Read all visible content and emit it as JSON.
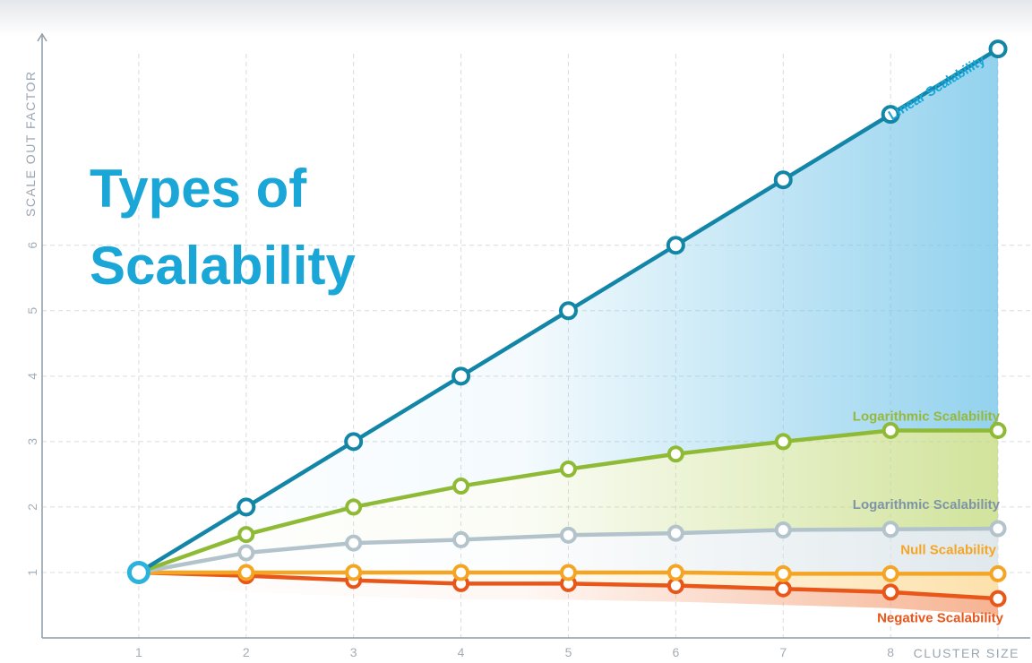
{
  "chart_data": {
    "type": "line",
    "title_lines": [
      "Types of",
      "Scalability"
    ],
    "xlabel": "CLUSTER SIZE",
    "ylabel": "SCALE OUT FACTOR",
    "x_ticks": [
      "1",
      "2",
      "3",
      "4",
      "5",
      "6",
      "7",
      "8"
    ],
    "y_ticks": [
      "1",
      "2",
      "3",
      "4",
      "5",
      "6"
    ],
    "xlim": [
      0.1,
      9.3
    ],
    "ylim": [
      0,
      9.2
    ],
    "grid": true,
    "x": [
      1,
      2,
      3,
      4,
      5,
      6,
      7,
      8,
      9
    ],
    "series": [
      {
        "name": "Linear Scalability",
        "color": "#1386a8",
        "label_color": "#1aa7d8",
        "fill": "#6fc3e8",
        "values": [
          1,
          2,
          3,
          4,
          5,
          6,
          7,
          8,
          9
        ]
      },
      {
        "name": "Logarithmic Scalability",
        "color": "#8fba36",
        "label_color": "#98b83c",
        "fill": "#c2da7a",
        "values": [
          1,
          1.58,
          2,
          2.32,
          2.58,
          2.81,
          3,
          3.17,
          3.17
        ]
      },
      {
        "name": "Logarithmic Scalability",
        "color": "#b3c3cb",
        "label_color": "#7f95a5",
        "fill": "#d6e1e6",
        "values": [
          1,
          1.3,
          1.45,
          1.5,
          1.57,
          1.6,
          1.65,
          1.66,
          1.67
        ]
      },
      {
        "name": "Null Scalability",
        "color": "#f5a524",
        "label_color": "#f5a524",
        "fill": "#fcd790",
        "values": [
          1,
          1,
          1,
          1,
          1,
          1,
          0.98,
          0.98,
          0.98
        ]
      },
      {
        "name": "Negative Scalability",
        "color": "#e8561a",
        "label_color": "#e8561a",
        "fill": "#f39a6e",
        "values": [
          1,
          0.95,
          0.88,
          0.83,
          0.83,
          0.8,
          0.75,
          0.7,
          0.6
        ]
      }
    ]
  }
}
